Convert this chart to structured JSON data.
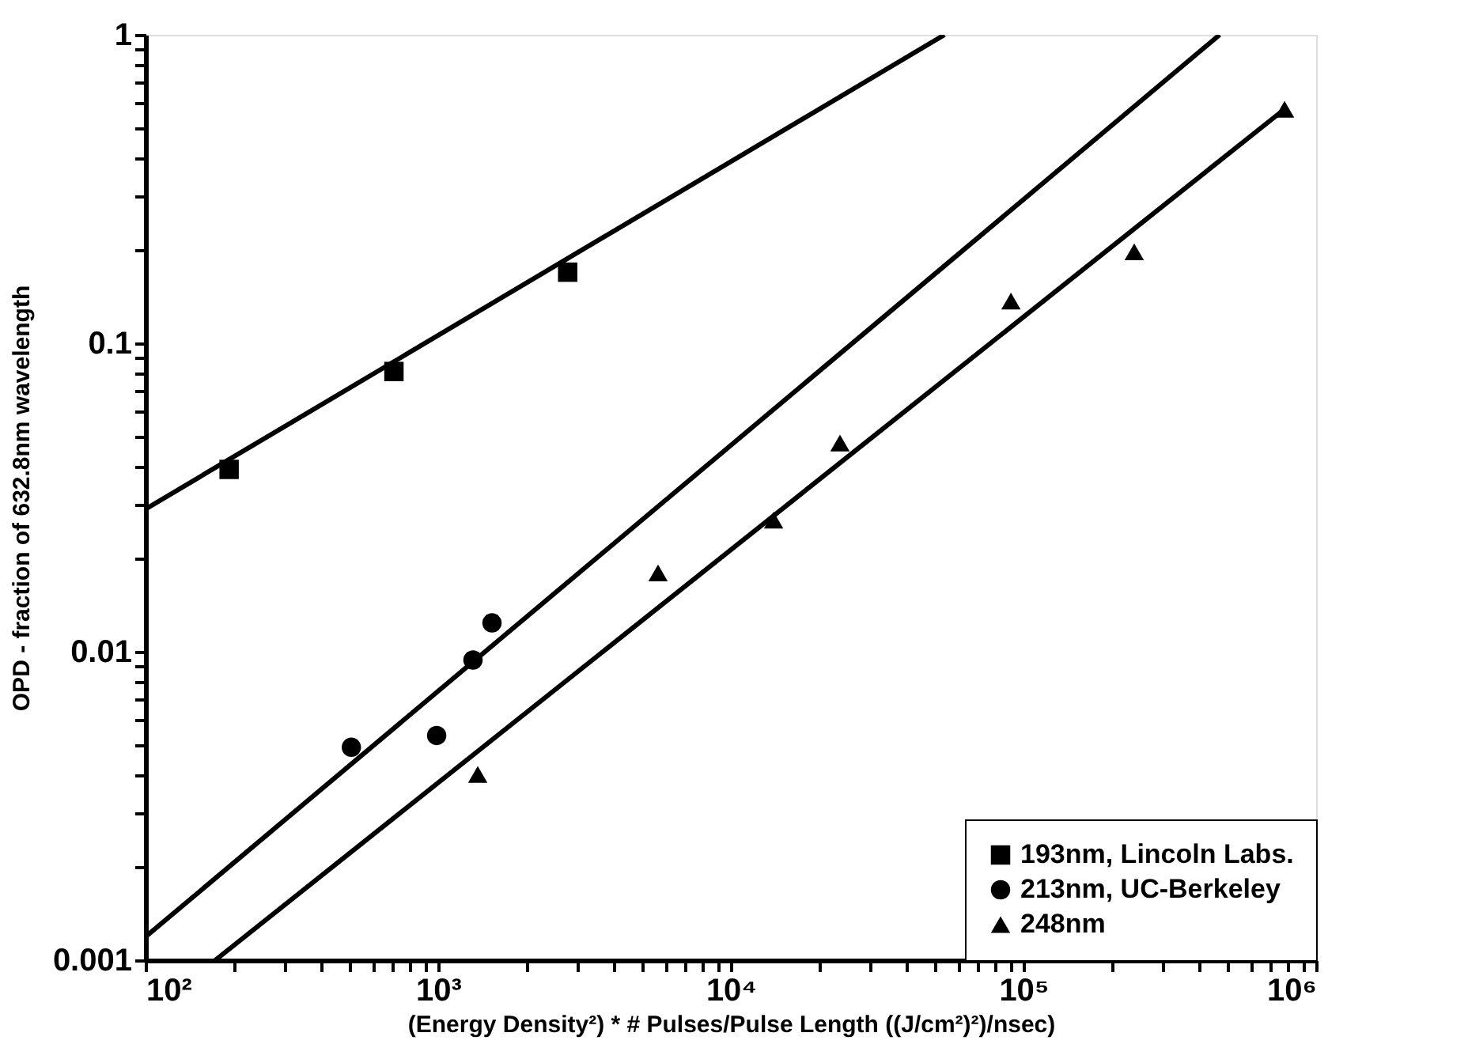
{
  "chart_data": {
    "type": "scatter",
    "xlabel": "(Energy Density²) * # Pulses/Pulse Length  ((J/cm²)²)/nsec)",
    "ylabel": "OPD - fraction of 632.8nm wavelength",
    "log": "xy",
    "grid": false,
    "legend": "bottom right",
    "xlim": [
      100,
      1000000
    ],
    "ylim": [
      0.001,
      1
    ],
    "xticks": [
      {
        "value": 100,
        "label": "10²"
      },
      {
        "value": 200,
        "label": null
      },
      {
        "value": 300,
        "label": null
      },
      {
        "value": 400,
        "label": null
      },
      {
        "value": 500,
        "label": null
      },
      {
        "value": 600,
        "label": null
      },
      {
        "value": 700,
        "label": null
      },
      {
        "value": 800,
        "label": null
      },
      {
        "value": 900,
        "label": null
      },
      {
        "value": 1000,
        "label": "10³"
      },
      {
        "value": 2000,
        "label": null
      },
      {
        "value": 3000,
        "label": null
      },
      {
        "value": 4000,
        "label": null
      },
      {
        "value": 5000,
        "label": null
      },
      {
        "value": 6000,
        "label": null
      },
      {
        "value": 7000,
        "label": null
      },
      {
        "value": 8000,
        "label": null
      },
      {
        "value": 9000,
        "label": null
      },
      {
        "value": 10000,
        "label": "10⁴"
      },
      {
        "value": 20000,
        "label": null
      },
      {
        "value": 30000,
        "label": null
      },
      {
        "value": 40000,
        "label": null
      },
      {
        "value": 50000,
        "label": null
      },
      {
        "value": 60000,
        "label": null
      },
      {
        "value": 70000,
        "label": null
      },
      {
        "value": 80000,
        "label": null
      },
      {
        "value": 90000,
        "label": null
      },
      {
        "value": 100000,
        "label": "10⁵"
      },
      {
        "value": 200000,
        "label": null
      },
      {
        "value": 300000,
        "label": null
      },
      {
        "value": 400000,
        "label": null
      },
      {
        "value": 500000,
        "label": null
      },
      {
        "value": 600000,
        "label": null
      },
      {
        "value": 700000,
        "label": null
      },
      {
        "value": 800000,
        "label": null
      },
      {
        "value": 900000,
        "label": null
      },
      {
        "value": 1000000,
        "label": "10⁶"
      }
    ],
    "yticks": [
      0.001,
      {
        "value": 0.002,
        "label": null
      },
      {
        "value": 0.003,
        "label": null
      },
      {
        "value": 0.004,
        "label": null
      },
      {
        "value": 0.005,
        "label": null
      },
      {
        "value": 0.006,
        "label": null
      },
      {
        "value": 0.007,
        "label": null
      },
      {
        "value": 0.008,
        "label": null
      },
      {
        "value": 0.009,
        "label": null
      },
      0.01,
      {
        "value": 0.02,
        "label": null
      },
      {
        "value": 0.03,
        "label": null
      },
      {
        "value": 0.04,
        "label": null
      },
      {
        "value": 0.05,
        "label": null
      },
      {
        "value": 0.06,
        "label": null
      },
      {
        "value": 0.07,
        "label": null
      },
      {
        "value": 0.08,
        "label": null
      },
      {
        "value": 0.09,
        "label": null
      },
      0.1,
      {
        "value": 0.2,
        "label": null
      },
      {
        "value": 0.3,
        "label": null
      },
      {
        "value": 0.4,
        "label": null
      },
      {
        "value": 0.5,
        "label": null
      },
      {
        "value": 0.6,
        "label": null
      },
      {
        "value": 0.7,
        "label": null
      },
      {
        "value": 0.8,
        "label": null
      },
      {
        "value": 0.9,
        "label": null
      },
      1
    ],
    "series": [
      {
        "name": "193nm, Lincoln Labs.",
        "color": "#000000",
        "marker": "square",
        "x": [
          193,
          706,
          2770
        ],
        "values": [
          0.039,
          0.081,
          0.17
        ]
      },
      {
        "name": "213nm, UC-Berkeley",
        "color": "#000000",
        "marker": "circle",
        "x": [
          505,
          988,
          1315,
          1527
        ],
        "values": [
          0.0049,
          0.00535,
          0.0094,
          0.0124
        ]
      },
      {
        "name": "248nm",
        "color": "#000000",
        "marker": "triangle",
        "x": [
          1365,
          5640,
          14000,
          23600,
          90600,
          239000,
          780000
        ],
        "values": [
          0.004,
          0.018,
          0.0267,
          0.0475,
          0.137,
          0.198,
          0.574
        ]
      },
      {
        "type": "line",
        "color": "#000000",
        "line_style": "solid",
        "x": [
          100,
          53700
        ],
        "values": [
          0.029,
          1
        ]
      },
      {
        "type": "line",
        "color": "#000000",
        "line_style": "solid",
        "x": [
          100,
          468000
        ],
        "values": [
          0.00119,
          1
        ]
      },
      {
        "type": "line",
        "color": "#000000",
        "line_style": "solid",
        "x": [
          173,
          780000
        ],
        "values": [
          0.001,
          0.574
        ]
      }
    ]
  }
}
